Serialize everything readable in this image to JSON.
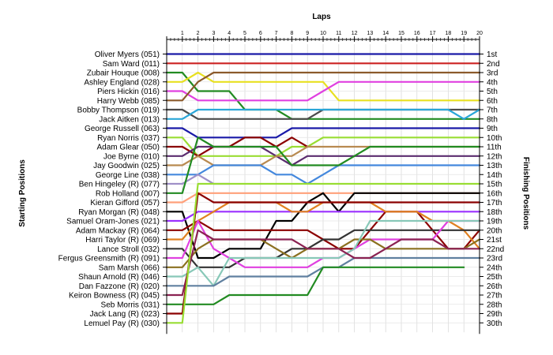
{
  "chart_data": {
    "type": "line",
    "title": "Laps",
    "ylabel_left": "Starting Positions",
    "ylabel_right": "Finishing Positions",
    "laps": [
      "1",
      "2",
      "3",
      "4",
      "5",
      "6",
      "7",
      "8",
      "9",
      "10",
      "11",
      "12",
      "13",
      "14",
      "15",
      "16",
      "17",
      "18",
      "19",
      "20"
    ],
    "drivers": [
      "Oliver Myers (051)",
      "Sam Ward (011)",
      "Zubair Houque (008)",
      "Ashley England (028)",
      "Piers Hickin (016)",
      "Harry Webb (085)",
      "Bobby Thompson (019)",
      "Jack Aitken (013)",
      "George Russell (063)",
      "Ryan Norris (037)",
      "Adam Glear (050)",
      "Joe Byrne (010)",
      "Jay Goodwin (025)",
      "George Line (038)",
      "Ben Hingeley (R) (077)",
      "Rob Holland (007)",
      "Kieran Gifford (057)",
      "Ryan Morgan (R) (048)",
      "Samuel Oram-Jones (021)",
      "Adam Mackay (R) (064)",
      "Harri Taylor (R) (069)",
      "Lance Stroll (032)",
      "Fergus Greensmith (R) (091)",
      "Sam Marsh (066)",
      "Shaun Arnold (R) (046)",
      "Dan Fazzone (R) (020)",
      "Keiron Bowness (R) (045)",
      "Seb Morris (031)",
      "Jack Lang (R) (023)",
      "Lemuel Pay (R) (030)"
    ],
    "finishing": [
      "1st",
      "2nd",
      "3rd",
      "4th",
      "5th",
      "6th",
      "7th",
      "8th",
      "9th",
      "10th",
      "11th",
      "12th",
      "13th",
      "14th",
      "15th",
      "16th",
      "17th",
      "18th",
      "19th",
      "20th",
      "21st",
      "22nd",
      "23rd",
      "24th",
      "25th",
      "26th",
      "27th",
      "28th",
      "29th",
      "30th"
    ],
    "series": [
      {
        "start": 1,
        "color": "#1a1aa8",
        "pos": [
          1,
          1,
          1,
          1,
          1,
          1,
          1,
          1,
          1,
          1,
          1,
          1,
          1,
          1,
          1,
          1,
          1,
          1,
          1,
          1
        ]
      },
      {
        "start": 2,
        "color": "#cc2222",
        "pos": [
          2,
          2,
          2,
          2,
          2,
          2,
          2,
          2,
          2,
          2,
          2,
          2,
          2,
          2,
          2,
          2,
          2,
          2,
          2,
          2
        ]
      },
      {
        "start": 3,
        "color": "#228b22",
        "pos": [
          3,
          5,
          5,
          5,
          7,
          7,
          7,
          8,
          8,
          8,
          8,
          8,
          8,
          8,
          8,
          8,
          8,
          8,
          8,
          8
        ]
      },
      {
        "start": 4,
        "color": "#e8e020",
        "pos": [
          4,
          3,
          4,
          4,
          4,
          4,
          4,
          4,
          4,
          4,
          6,
          6,
          6,
          6,
          6,
          6,
          6,
          6,
          6,
          6
        ]
      },
      {
        "start": 5,
        "color": "#e040e0",
        "pos": [
          5,
          6,
          6,
          6,
          6,
          6,
          6,
          6,
          6,
          5,
          4,
          4,
          4,
          4,
          4,
          4,
          4,
          4,
          4,
          4
        ]
      },
      {
        "start": 6,
        "color": "#8b5a2b",
        "pos": [
          6,
          4,
          3,
          3,
          3,
          3,
          3,
          3,
          3,
          3,
          3,
          3,
          3,
          3,
          3,
          3,
          3,
          3,
          3,
          3
        ]
      },
      {
        "start": 7,
        "color": "#4b4b4b",
        "pos": [
          7,
          8,
          8,
          8,
          8,
          8,
          8,
          8,
          8,
          7,
          7,
          7,
          7,
          7,
          7,
          7,
          7,
          7,
          7,
          7
        ]
      },
      {
        "start": 8,
        "color": "#2aa6d8",
        "pos": [
          8,
          7,
          7,
          7,
          7,
          7,
          7,
          7,
          7,
          7,
          7,
          7,
          7,
          7,
          7,
          7,
          7,
          7,
          8,
          7
        ]
      },
      {
        "start": 9,
        "color": "#1a1aa8",
        "pos": [
          9,
          10,
          10,
          10,
          10,
          10,
          10,
          9,
          9,
          9,
          9,
          9,
          9,
          9,
          9,
          9,
          9,
          9,
          9,
          9
        ]
      },
      {
        "start": 10,
        "color": "#99dd33",
        "pos": [
          10,
          12,
          12,
          12,
          12,
          12,
          12,
          11,
          11,
          10,
          10,
          10,
          10,
          10,
          10,
          10,
          10,
          10,
          10,
          10
        ]
      },
      {
        "start": 11,
        "color": "#8b0000",
        "pos": [
          11,
          12,
          11,
          11,
          10,
          10,
          11,
          10,
          11
        ]
      },
      {
        "start": 12,
        "color": "#5b2c6f",
        "pos": [
          12,
          11,
          11,
          11,
          11,
          11,
          12,
          13,
          12,
          12,
          12,
          12,
          12,
          12,
          12,
          12,
          12,
          12,
          12,
          12
        ]
      },
      {
        "start": 13,
        "color": "#b88a50",
        "pos": [
          13,
          12,
          13,
          13,
          13,
          13,
          12,
          12,
          11,
          11,
          11,
          11,
          11,
          11,
          11,
          11,
          11,
          11,
          11,
          11
        ]
      },
      {
        "start": 14,
        "color": "#4488dd",
        "pos": [
          14,
          14,
          13,
          13,
          13,
          13,
          14,
          14,
          15,
          14,
          13,
          13,
          13,
          13,
          13,
          13,
          13,
          13,
          13,
          13
        ]
      },
      {
        "start": 15,
        "color": "#a090c8",
        "pos": [
          15,
          14,
          15,
          15
        ]
      },
      {
        "start": 16,
        "color": "#228b22",
        "pos": [
          16,
          10,
          11,
          11,
          11,
          11,
          11,
          13,
          13,
          13,
          13,
          12,
          11,
          11,
          11,
          11,
          11,
          11,
          11,
          11
        ]
      },
      {
        "start": 17,
        "color": "#ffa07a",
        "pos": [
          17,
          16,
          16,
          16,
          16,
          16,
          16,
          16,
          16,
          16,
          16,
          16,
          16,
          16,
          16,
          16,
          16,
          16,
          16,
          16
        ]
      },
      {
        "start": 18,
        "color": "#000000",
        "pos": [
          18,
          23,
          23,
          22,
          22,
          22,
          19,
          19,
          17,
          16,
          18,
          16,
          16,
          16,
          16,
          16,
          16,
          16,
          16,
          16
        ]
      },
      {
        "start": 19,
        "color": "#9b30ff",
        "pos": [
          19,
          18,
          18,
          18,
          18,
          18,
          18,
          18,
          18,
          18,
          18,
          18,
          18,
          18,
          18,
          18,
          18,
          18,
          18,
          18
        ]
      },
      {
        "start": 20,
        "color": "#8b0000",
        "pos": [
          20,
          19,
          20,
          20,
          20,
          20,
          20,
          20,
          20,
          21,
          22,
          22,
          20,
          18,
          18,
          18,
          20,
          22,
          22,
          20
        ]
      },
      {
        "start": 21,
        "color": "#e08020",
        "pos": [
          21,
          19,
          18,
          17,
          17,
          17,
          17,
          18,
          18,
          17,
          17,
          17,
          17,
          18,
          18,
          18,
          19,
          19,
          20,
          22
        ]
      },
      {
        "start": 22,
        "color": "#333333",
        "pos": [
          22,
          24,
          24,
          24,
          23,
          23,
          23,
          22,
          22,
          21,
          21,
          20,
          20,
          20,
          20,
          20,
          20,
          20,
          20,
          20
        ]
      },
      {
        "start": 23,
        "color": "#e040e0",
        "pos": [
          23,
          19,
          22,
          23,
          24,
          24,
          24,
          24,
          24,
          23,
          23,
          22,
          21,
          21,
          21,
          21,
          21,
          19,
          19,
          19
        ]
      },
      {
        "start": 24,
        "color": "#8b7020",
        "pos": [
          24,
          22,
          21,
          21,
          21,
          21,
          22,
          23,
          22,
          22,
          22,
          21,
          21,
          22,
          22,
          22,
          22,
          22,
          22,
          21
        ]
      },
      {
        "start": 25,
        "color": "#88c8b8",
        "pos": [
          25,
          24,
          26,
          23,
          23,
          23,
          23,
          23,
          23,
          23,
          23,
          22,
          19,
          19,
          19,
          19,
          19,
          19,
          19,
          19
        ]
      },
      {
        "start": 26,
        "color": "#6080a0",
        "pos": [
          26,
          26,
          26,
          25,
          25,
          25,
          25,
          25,
          25,
          24,
          24,
          23,
          23,
          23,
          23,
          23,
          23,
          23,
          23,
          23
        ]
      },
      {
        "start": 27,
        "color": "#8b2252",
        "pos": [
          27,
          20,
          21,
          21,
          21,
          21,
          21,
          21,
          22,
          22,
          22,
          23,
          23,
          22,
          21,
          21,
          21,
          22,
          22,
          22
        ]
      },
      {
        "start": 28,
        "color": "#228b22",
        "pos": [
          28,
          28,
          28,
          27,
          27,
          27,
          27,
          27,
          27,
          24,
          24,
          24,
          24,
          24,
          24,
          24,
          24,
          24,
          24
        ]
      },
      {
        "start": 29,
        "color": "#8b0000",
        "pos": [
          29,
          16,
          17,
          17,
          17,
          17,
          17,
          17,
          17,
          17,
          17,
          17,
          17,
          17,
          17,
          17,
          17,
          17,
          17,
          17
        ]
      },
      {
        "start": 30,
        "color": "#99dd33",
        "pos": [
          30,
          15,
          15,
          15,
          15,
          15,
          15,
          15,
          15,
          15,
          15,
          15,
          15,
          15,
          15,
          15,
          15,
          15,
          15,
          15
        ]
      }
    ]
  }
}
